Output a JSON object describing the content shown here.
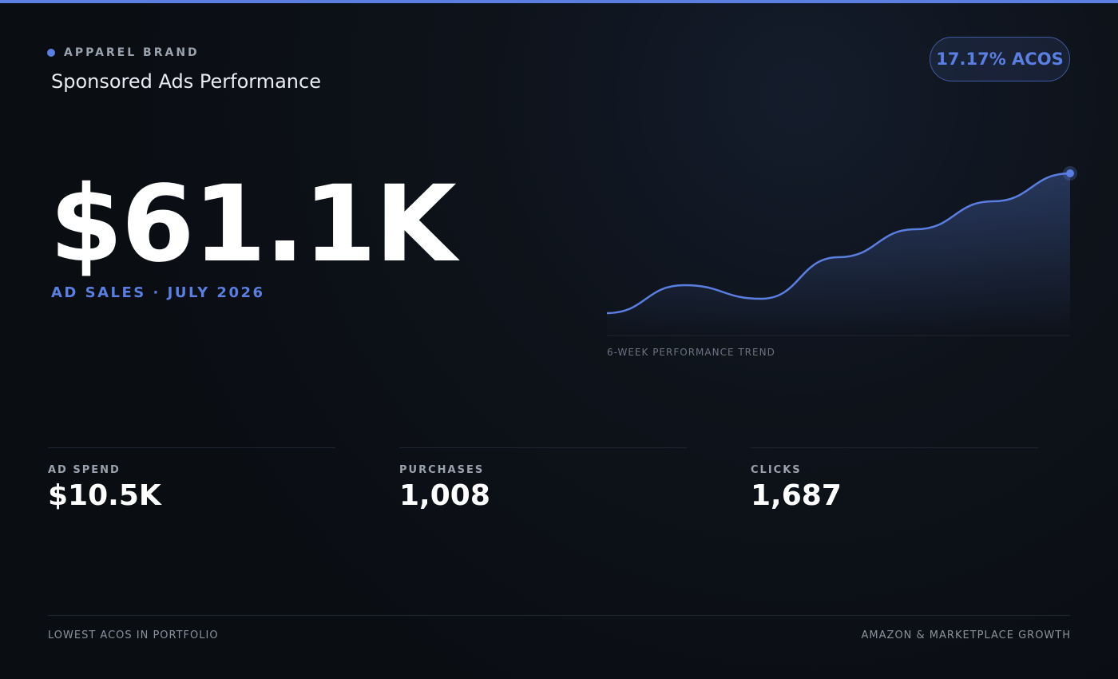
{
  "header": {
    "brand": "APPAREL BRAND",
    "title": "Sponsored Ads Performance"
  },
  "badge": "17.17% ACOS",
  "hero": {
    "value": "$61.1K",
    "label": "AD SALES · JULY 2026"
  },
  "trend": {
    "type": "line",
    "label": "6-WEEK PERFORMANCE TREND",
    "color": "#5b7fe0",
    "values": [
      28,
      63,
      46,
      98,
      133,
      168,
      203
    ]
  },
  "stats": [
    {
      "label": "AD SPEND",
      "value": "$10.5K"
    },
    {
      "label": "PURCHASES",
      "value": "1,008"
    },
    {
      "label": "CLICKS",
      "value": "1,687"
    }
  ],
  "footer": {
    "left": "LOWEST ACOS IN PORTFOLIO",
    "right": "AMAZON & MARKETPLACE GROWTH"
  }
}
